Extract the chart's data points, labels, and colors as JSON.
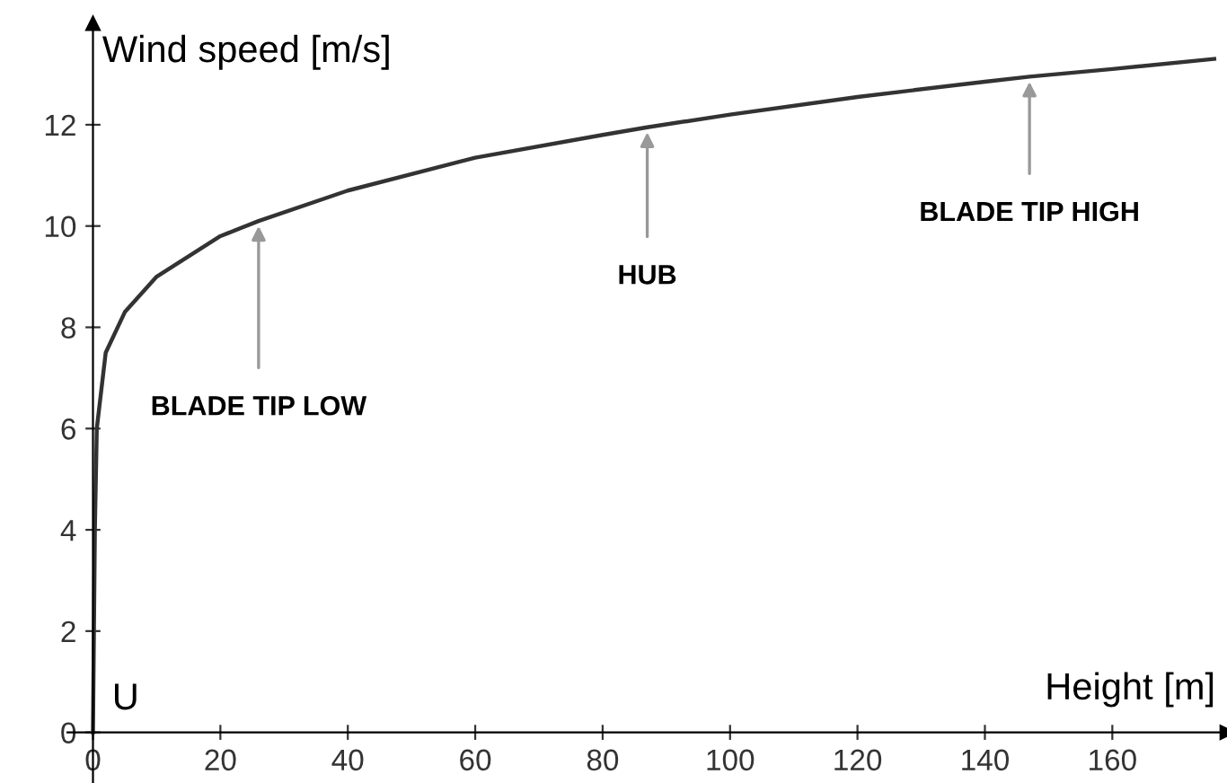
{
  "chart_data": {
    "type": "line",
    "xlabel": "Height [m]",
    "ylabel": "Wind speed [m/s]",
    "x": [
      0,
      0.3,
      0.6,
      2,
      5,
      10,
      20,
      26,
      40,
      60,
      80,
      87,
      100,
      120,
      140,
      147,
      160,
      176
    ],
    "series": [
      {
        "color": "#333333",
        "values": [
          0,
          4,
          6,
          7.5,
          8.3,
          9.0,
          9.8,
          10.1,
          10.7,
          11.35,
          11.8,
          11.95,
          12.2,
          12.55,
          12.85,
          12.95,
          13.1,
          13.3
        ]
      }
    ],
    "xlim": [
      -4,
      178
    ],
    "ylim": [
      -1,
      14
    ],
    "xticks": [
      0,
      20,
      40,
      60,
      80,
      100,
      120,
      140,
      160
    ],
    "yticks": [
      0,
      2,
      4,
      6,
      8,
      10,
      12
    ],
    "grid": false,
    "marker": "none",
    "line_style": "solid",
    "annotations": [
      {
        "text": "BLADE TIP LOW",
        "x": 26,
        "y": 10.1
      },
      {
        "text": "HUB",
        "x": 87,
        "y": 11.95
      },
      {
        "text": "BLADE TIP HIGH",
        "x": 147,
        "y": 12.95
      },
      "U"
    ]
  }
}
